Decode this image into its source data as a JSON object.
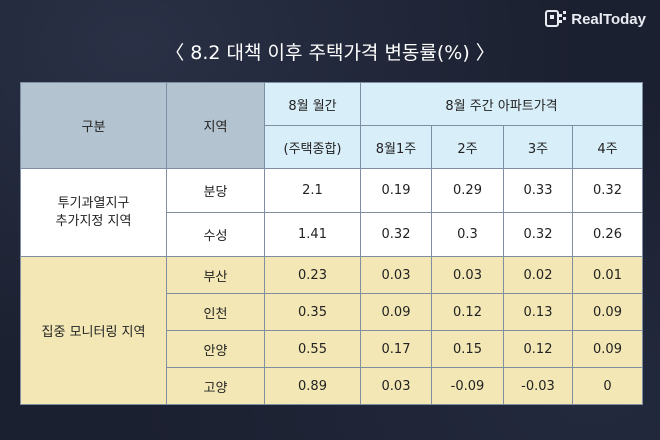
{
  "brand": {
    "name": "RealToday"
  },
  "title": "〈 8.2 대책 이후 주택가격 변동률(%) 〉",
  "table": {
    "header": {
      "col_category": "구분",
      "col_region": "지역",
      "col_monthly": "8월 월간",
      "col_weekly": "8월 주간 아파트가격",
      "col_monthly_sub": "(주택종합)",
      "weeks": [
        "8월1주",
        "2주",
        "3주",
        "4주"
      ]
    },
    "groups": [
      {
        "label": "투기과열지구\n추가지정 지역",
        "rows": [
          {
            "region": "분당",
            "monthly": "2.1",
            "weekly": [
              "0.19",
              "0.29",
              "0.33",
              "0.32"
            ]
          },
          {
            "region": "수성",
            "monthly": "1.41",
            "weekly": [
              "0.32",
              "0.3",
              "0.32",
              "0.26"
            ]
          }
        ]
      },
      {
        "label": "집중 모니터링 지역",
        "rows": [
          {
            "region": "부산",
            "monthly": "0.23",
            "weekly": [
              "0.03",
              "0.03",
              "0.02",
              "0.01"
            ]
          },
          {
            "region": "인천",
            "monthly": "0.35",
            "weekly": [
              "0.09",
              "0.12",
              "0.13",
              "0.09"
            ]
          },
          {
            "region": "안양",
            "monthly": "0.55",
            "weekly": [
              "0.17",
              "0.15",
              "0.12",
              "0.09"
            ]
          },
          {
            "region": "고양",
            "monthly": "0.89",
            "weekly": [
              "0.03",
              "-0.09",
              "-0.03",
              "0"
            ]
          }
        ]
      }
    ]
  }
}
